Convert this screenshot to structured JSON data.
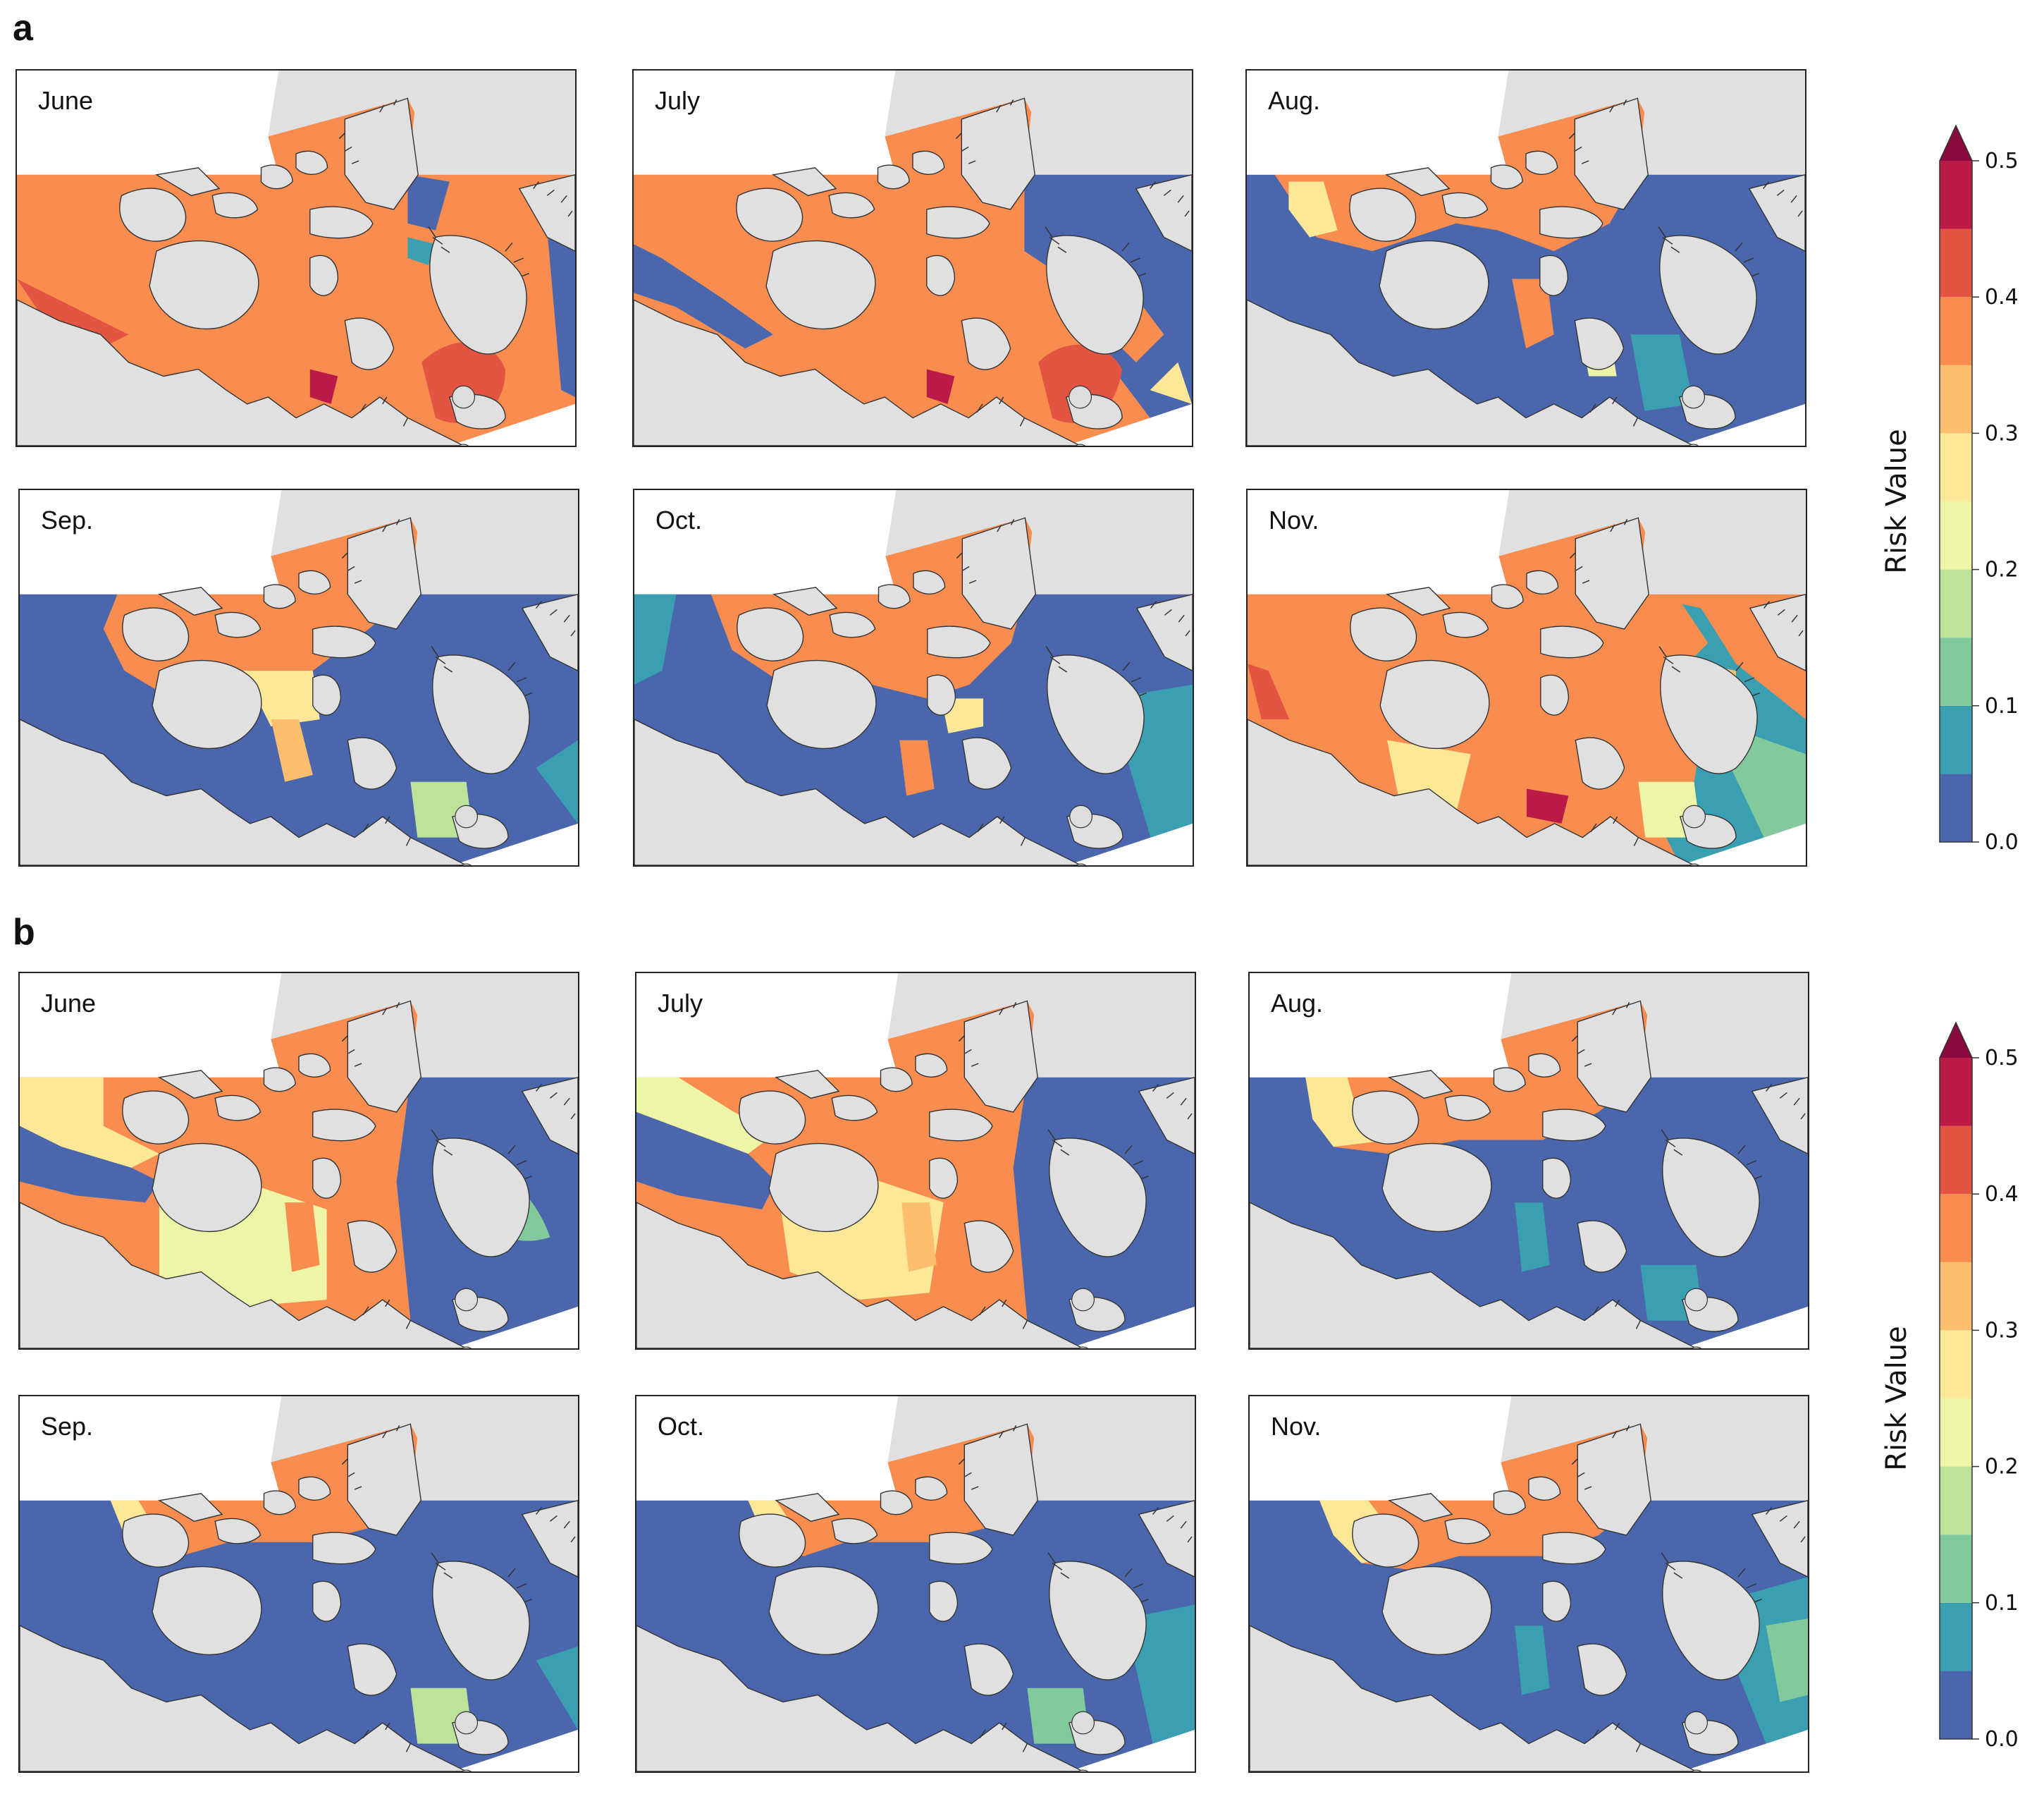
{
  "panels": [
    {
      "id": "a",
      "label": "a",
      "maps": [
        {
          "month": "June",
          "scheme": "a-june"
        },
        {
          "month": "July",
          "scheme": "a-july"
        },
        {
          "month": "Aug.",
          "scheme": "a-aug"
        },
        {
          "month": "Sep.",
          "scheme": "a-sep"
        },
        {
          "month": "Oct.",
          "scheme": "a-oct"
        },
        {
          "month": "Nov.",
          "scheme": "a-nov"
        }
      ]
    },
    {
      "id": "b",
      "label": "b",
      "maps": [
        {
          "month": "June",
          "scheme": "b-june"
        },
        {
          "month": "July",
          "scheme": "b-july"
        },
        {
          "month": "Aug.",
          "scheme": "b-aug"
        },
        {
          "month": "Sep.",
          "scheme": "b-sep"
        },
        {
          "month": "Oct.",
          "scheme": "b-oct"
        },
        {
          "month": "Nov.",
          "scheme": "b-nov"
        }
      ]
    }
  ],
  "colorbar": {
    "title": "Risk Value",
    "ticks": [
      "0.0",
      "0.1",
      "0.2",
      "0.3",
      "0.4",
      "0.5"
    ],
    "range": [
      0,
      0.5
    ],
    "extend": "max",
    "levels": [
      {
        "from": 0.0,
        "to": 0.05,
        "color": "#4a67ad"
      },
      {
        "from": 0.05,
        "to": 0.1,
        "color": "#3b9fb2"
      },
      {
        "from": 0.1,
        "to": 0.15,
        "color": "#82c99c"
      },
      {
        "from": 0.15,
        "to": 0.2,
        "color": "#bde39a"
      },
      {
        "from": 0.2,
        "to": 0.25,
        "color": "#eef5a6"
      },
      {
        "from": 0.25,
        "to": 0.3,
        "color": "#fde898"
      },
      {
        "from": 0.3,
        "to": 0.35,
        "color": "#fdbf6f"
      },
      {
        "from": 0.35,
        "to": 0.4,
        "color": "#f88d4f"
      },
      {
        "from": 0.4,
        "to": 0.45,
        "color": "#e45443"
      },
      {
        "from": 0.45,
        "to": 0.5,
        "color": "#bb1a47"
      }
    ],
    "over_color": "#8b0a3d"
  },
  "colors": {
    "land": "#e0e0e0",
    "nodata": "#ffffff",
    "coast": "#333333"
  }
}
